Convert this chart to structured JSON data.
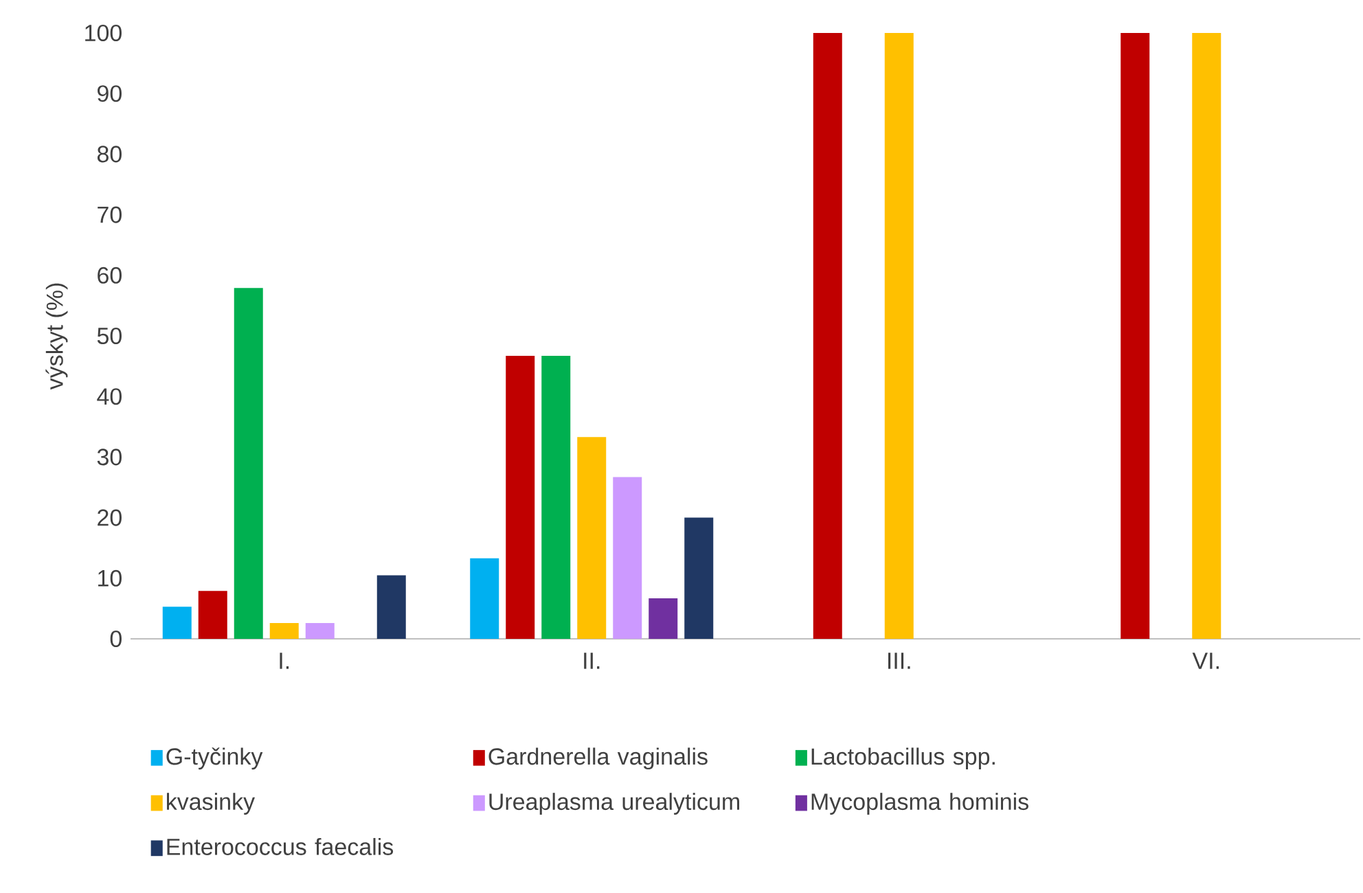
{
  "chart_data": {
    "type": "bar",
    "ylabel": "výskyt (%)",
    "categories": [
      "I.",
      "II.",
      "III.",
      "VI."
    ],
    "ylim": [
      0,
      100
    ],
    "yticks": [
      0,
      10,
      20,
      30,
      40,
      50,
      60,
      70,
      80,
      90,
      100
    ],
    "legend": "bottom",
    "grid": false,
    "series": [
      {
        "name": "G-tyčinky",
        "color": "#00b0f0",
        "values": [
          5.3,
          13.3,
          0,
          0
        ]
      },
      {
        "name": "Gardnerella vaginalis",
        "color": "#c00000",
        "values": [
          7.9,
          46.7,
          100,
          100
        ]
      },
      {
        "name": "Lactobacillus spp.",
        "color": "#00b050",
        "values": [
          57.9,
          46.7,
          0,
          0
        ]
      },
      {
        "name": "kvasinky",
        "color": "#ffc000",
        "values": [
          2.6,
          33.3,
          100,
          100
        ]
      },
      {
        "name": "Ureaplasma urealyticum",
        "color": "#cc99ff",
        "values": [
          2.6,
          26.7,
          0,
          0
        ]
      },
      {
        "name": "Mycoplasma hominis",
        "color": "#7030a0",
        "values": [
          0,
          6.7,
          0,
          0
        ]
      },
      {
        "name": "Enterococcus faecalis",
        "color": "#203864",
        "values": [
          10.5,
          20,
          0,
          0
        ]
      }
    ]
  }
}
